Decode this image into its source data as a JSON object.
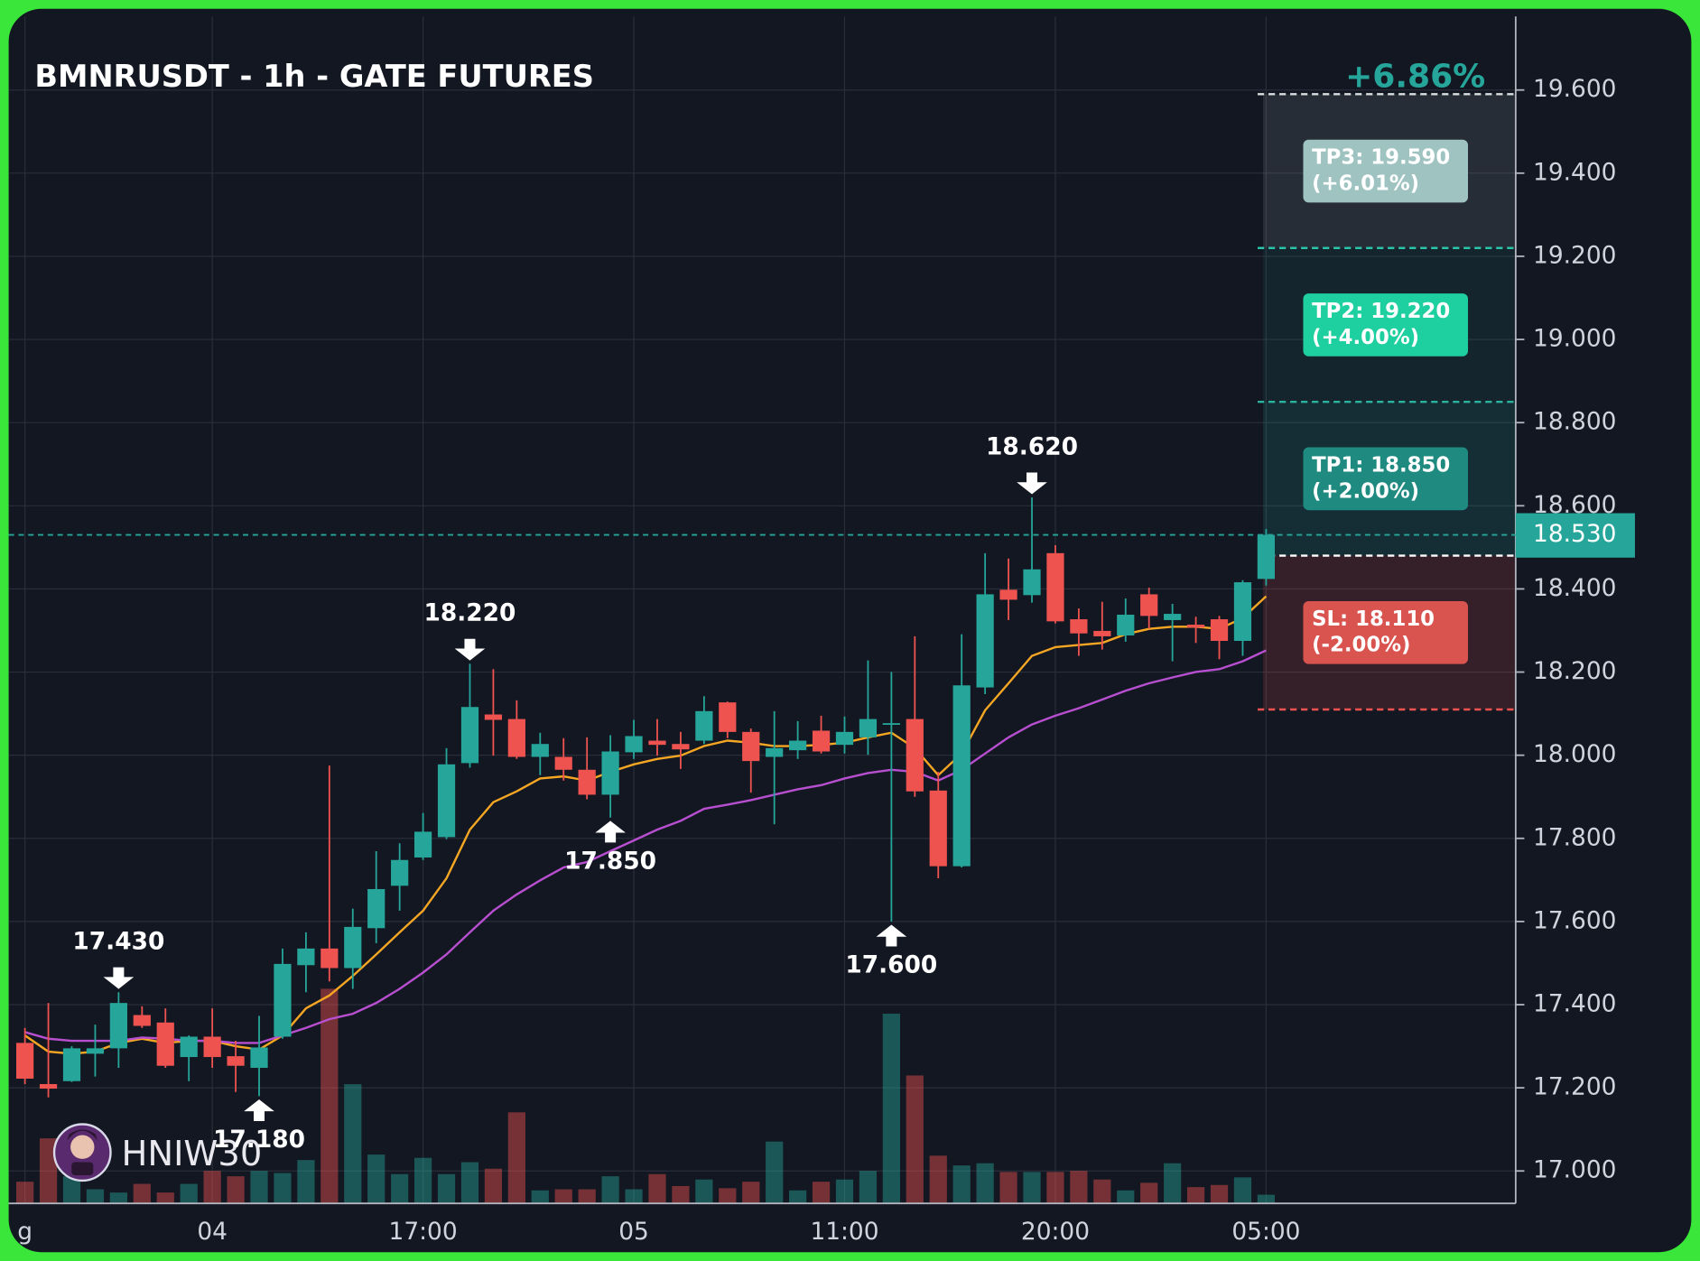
{
  "chart_data": {
    "type": "candlestick",
    "title": "BMNRUSDT - 1h - GATE FUTURES",
    "change_label": "+6.86%",
    "watermark": "HNIW30",
    "categories": [
      "g",
      null,
      null,
      null,
      null,
      null,
      null,
      null,
      "04",
      null,
      null,
      null,
      null,
      null,
      null,
      null,
      null,
      "17:00",
      null,
      null,
      null,
      null,
      null,
      null,
      null,
      null,
      "05",
      null,
      null,
      null,
      null,
      null,
      null,
      null,
      null,
      "11:00",
      null,
      null,
      null,
      null,
      null,
      null,
      null,
      null,
      "20:00",
      null,
      null,
      null,
      null,
      null,
      null,
      null,
      null,
      "05:00"
    ],
    "open": [
      17.308,
      17.209,
      17.216,
      17.282,
      17.295,
      17.375,
      17.357,
      17.274,
      17.323,
      17.276,
      17.248,
      17.323,
      17.495,
      17.535,
      17.488,
      17.584,
      17.686,
      17.754,
      17.803,
      17.981,
      18.098,
      18.087,
      17.996,
      17.996,
      17.965,
      17.905,
      18.007,
      18.035,
      18.027,
      18.035,
      18.127,
      18.056,
      17.996,
      18.012,
      18.059,
      18.025,
      18.043,
      18.074,
      18.087,
      17.915,
      17.733,
      18.163,
      18.398,
      18.385,
      18.486,
      18.327,
      18.299,
      18.288,
      18.387,
      18.325,
      18.314,
      18.327,
      18.275,
      18.424
    ],
    "high": [
      17.344,
      17.404,
      17.3,
      17.352,
      17.43,
      17.396,
      17.391,
      17.326,
      17.391,
      17.313,
      17.373,
      17.535,
      17.574,
      17.975,
      17.631,
      17.769,
      17.788,
      17.861,
      18.017,
      18.22,
      18.207,
      18.132,
      18.054,
      18.041,
      18.043,
      18.048,
      18.085,
      18.087,
      18.056,
      18.142,
      18.129,
      18.064,
      18.106,
      18.082,
      18.095,
      18.093,
      18.228,
      18.2,
      18.286,
      17.96,
      18.291,
      18.486,
      18.473,
      18.62,
      18.505,
      18.353,
      18.369,
      18.377,
      18.403,
      18.364,
      18.333,
      18.335,
      18.421,
      18.544
    ],
    "low": [
      17.209,
      17.177,
      17.214,
      17.227,
      17.248,
      17.344,
      17.248,
      17.216,
      17.248,
      17.19,
      17.18,
      17.318,
      17.43,
      17.456,
      17.438,
      17.548,
      17.626,
      17.748,
      17.798,
      17.97,
      17.999,
      17.991,
      17.952,
      17.939,
      17.894,
      17.85,
      17.991,
      17.999,
      17.967,
      18.027,
      18.041,
      17.91,
      17.834,
      17.991,
      18.004,
      18.004,
      18.001,
      17.6,
      17.9,
      17.704,
      17.73,
      18.147,
      18.325,
      18.367,
      18.317,
      18.239,
      18.254,
      18.273,
      18.304,
      18.226,
      18.27,
      18.231,
      18.239,
      18.408
    ],
    "close": [
      17.222,
      17.198,
      17.295,
      17.295,
      17.404,
      17.349,
      17.253,
      17.323,
      17.274,
      17.253,
      17.297,
      17.498,
      17.535,
      17.488,
      17.587,
      17.678,
      17.748,
      17.816,
      17.978,
      18.116,
      18.085,
      17.996,
      18.027,
      17.965,
      17.905,
      18.009,
      18.046,
      18.025,
      18.014,
      18.106,
      18.056,
      17.986,
      18.017,
      18.035,
      18.009,
      18.056,
      18.087,
      18.077,
      17.913,
      17.733,
      18.168,
      18.387,
      18.374,
      18.447,
      18.322,
      18.293,
      18.286,
      18.338,
      18.335,
      18.34,
      18.307,
      18.275,
      18.416,
      18.53
    ],
    "volume": [
      20,
      60,
      25,
      13,
      10,
      18,
      10,
      18,
      30,
      25,
      30,
      28,
      40,
      198,
      110,
      45,
      27,
      42,
      27,
      38,
      32,
      84,
      12,
      13,
      13,
      25,
      13,
      27,
      16,
      22,
      14,
      20,
      57,
      12,
      20,
      22,
      30,
      175,
      118,
      44,
      35,
      37,
      29,
      29,
      29,
      30,
      22,
      12,
      19,
      37,
      15,
      17,
      24,
      8
    ],
    "up_color": "#26a69a",
    "down_color": "#ef5350",
    "lines": [
      {
        "color": "#f5a623",
        "values": [
          17.326,
          17.287,
          17.282,
          17.287,
          17.308,
          17.318,
          17.308,
          17.313,
          17.313,
          17.3,
          17.292,
          17.326,
          17.391,
          17.422,
          17.469,
          17.521,
          17.574,
          17.626,
          17.704,
          17.821,
          17.887,
          17.913,
          17.944,
          17.949,
          17.939,
          17.96,
          17.978,
          17.991,
          17.999,
          18.022,
          18.035,
          18.03,
          18.022,
          18.022,
          18.025,
          18.03,
          18.043,
          18.054,
          18.017,
          17.952,
          18.004,
          18.108,
          18.173,
          18.239,
          18.26,
          18.265,
          18.27,
          18.291,
          18.304,
          18.309,
          18.309,
          18.304,
          18.33,
          18.382
        ]
      },
      {
        "color": "#b84fd0",
        "values": [
          17.334,
          17.318,
          17.313,
          17.313,
          17.313,
          17.321,
          17.318,
          17.313,
          17.313,
          17.308,
          17.308,
          17.326,
          17.344,
          17.365,
          17.378,
          17.404,
          17.438,
          17.477,
          17.521,
          17.574,
          17.626,
          17.665,
          17.699,
          17.73,
          17.743,
          17.769,
          17.795,
          17.821,
          17.842,
          17.871,
          17.881,
          17.892,
          17.905,
          17.918,
          17.928,
          17.944,
          17.957,
          17.965,
          17.96,
          17.939,
          17.965,
          18.004,
          18.043,
          18.074,
          18.095,
          18.113,
          18.134,
          18.155,
          18.173,
          18.187,
          18.2,
          18.207,
          18.226,
          18.252
        ]
      }
    ],
    "ylim": [
      16.922,
      19.777
    ],
    "yticks": [
      {
        "value": 19.6,
        "label": "19.600"
      },
      {
        "value": 19.4,
        "label": "19.400"
      },
      {
        "value": 19.2,
        "label": "19.200"
      },
      {
        "value": 19.0,
        "label": "19.000"
      },
      {
        "value": 18.8,
        "label": "18.800"
      },
      {
        "value": 18.6,
        "label": "18.600"
      },
      {
        "value": 18.4,
        "label": "18.400"
      },
      {
        "value": 18.2,
        "label": "18.200"
      },
      {
        "value": 18.0,
        "label": "18.000"
      },
      {
        "value": 17.8,
        "label": "17.800"
      },
      {
        "value": 17.6,
        "label": "17.600"
      },
      {
        "value": 17.4,
        "label": "17.400"
      },
      {
        "value": 17.2,
        "label": "17.200"
      },
      {
        "value": 17.0,
        "label": "17.000"
      }
    ],
    "grid": true,
    "last_price": {
      "value": 18.53,
      "label": "18.530"
    },
    "entry": 18.48,
    "levels": [
      {
        "label": "TP3: 19.590",
        "sub": "(+6.01%)",
        "value": 19.59,
        "color": "#9fc3c1",
        "line_color": "#d8e0e0",
        "zone_color": "rgba(150,160,170,0.16)"
      },
      {
        "label": "TP2: 19.220",
        "sub": "(+4.00%)",
        "value": 19.22,
        "color": "#1ecf9f",
        "line_color": "#2bc4a8",
        "zone_color": "rgba(38,166,154,0.10)"
      },
      {
        "label": "TP1: 18.850",
        "sub": "(+2.00%)",
        "value": 18.85,
        "color": "#1f8a80",
        "line_color": "#2bb3a0",
        "zone_color": "rgba(38,166,154,0.16)"
      },
      {
        "label": "SL: 18.110",
        "sub": "(-2.00%)",
        "value": 18.11,
        "color": "#d9534f",
        "line_color": "#ef5350",
        "zone_color": "rgba(239,83,80,0.16)"
      }
    ],
    "annotations": [
      {
        "text": "17.430",
        "candle": 4,
        "side": "high"
      },
      {
        "text": "17.180",
        "candle": 10,
        "side": "low"
      },
      {
        "text": "18.220",
        "candle": 19,
        "side": "high"
      },
      {
        "text": "17.850",
        "candle": 25,
        "side": "low"
      },
      {
        "text": "17.600",
        "candle": 37,
        "side": "low"
      },
      {
        "text": "18.620",
        "candle": 43,
        "side": "high"
      }
    ]
  }
}
